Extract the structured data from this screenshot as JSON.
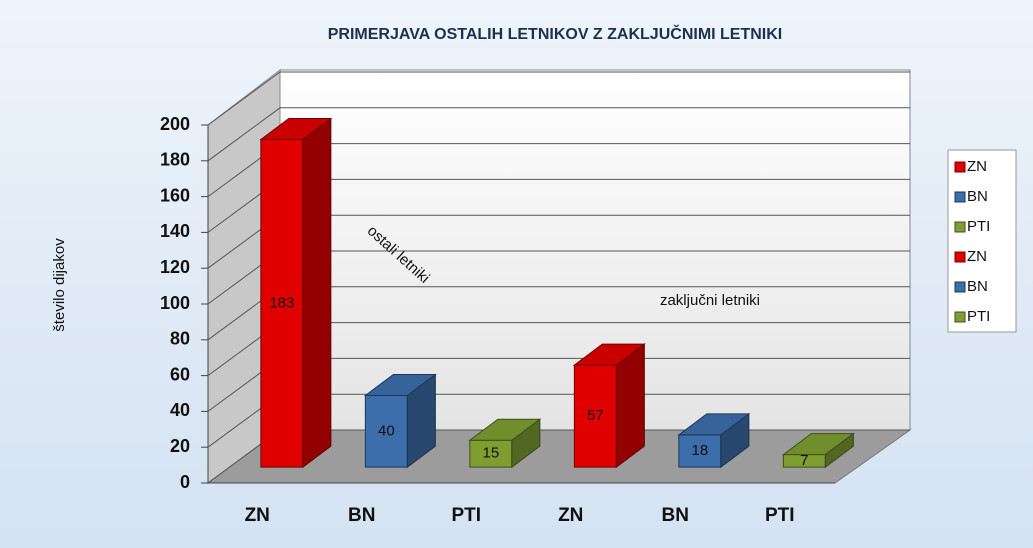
{
  "chart_data": {
    "type": "bar3d",
    "title": "PRIMERJAVA OSTALIH LETNIKOV Z ZAKLJUČNIMI LETNIKI",
    "y_axis_label": "število dijakov",
    "categories": [
      "ZN",
      "BN",
      "PTI",
      "ZN",
      "BN",
      "PTI"
    ],
    "values": [
      183,
      40,
      15,
      57,
      18,
      7
    ],
    "colors": [
      "#e00000",
      "#3d6eac",
      "#7e9e32",
      "#e00000",
      "#3d6eac",
      "#7e9e32"
    ],
    "annotations": [
      "ostali letniki",
      "zaključni letniki"
    ],
    "ylim": [
      0,
      200
    ],
    "yticks": [
      0,
      20,
      40,
      60,
      80,
      100,
      120,
      140,
      160,
      180,
      200
    ],
    "grid": true,
    "legend": "right"
  }
}
